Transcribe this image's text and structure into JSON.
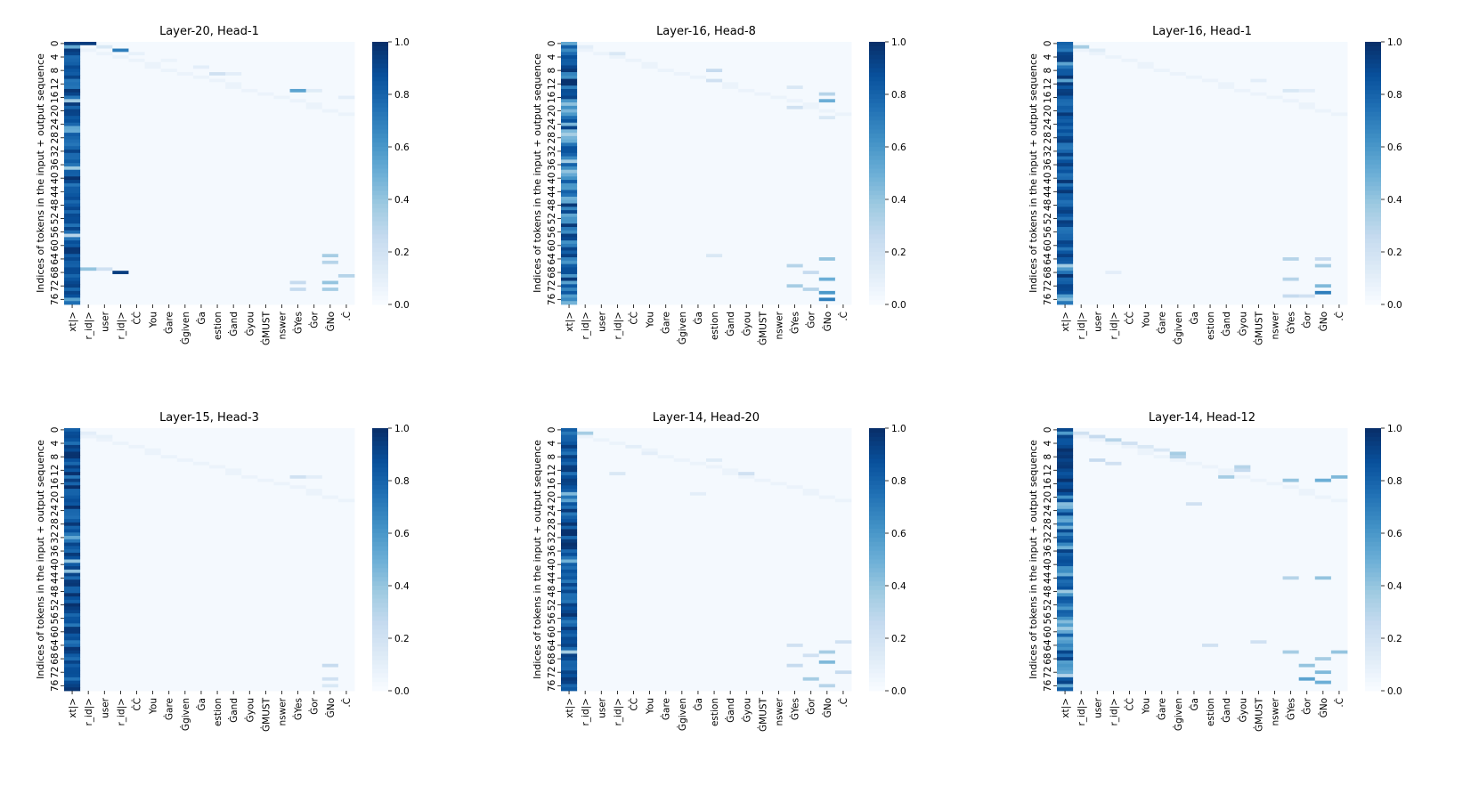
{
  "chart_data": [
    {
      "type": "heatmap",
      "title": "Layer-20, Head-1",
      "ylabel": "Indices of tokens in the input + output sequence",
      "x_tick_labels": [
        "xt|>",
        "r_id|>",
        "user",
        "r_id|>",
        "ĊĊ",
        "You",
        "Ġare",
        "Ġgiven",
        "Ġa",
        "estion",
        "Ġand",
        "Ġyou",
        "ĠMUST",
        "nswer",
        "ĠYes",
        "Ġor",
        "ĠNo",
        ".Ċ"
      ],
      "y_tick_labels": [
        "0",
        "4",
        "8",
        "12",
        "16",
        "20",
        "24",
        "28",
        "32",
        "36",
        "40",
        "44",
        "48",
        "52",
        "56",
        "60",
        "64",
        "68",
        "72",
        "76"
      ],
      "colorbar": {
        "ticks": [
          "0.0",
          "0.2",
          "0.4",
          "0.6",
          "0.8",
          "1.0"
        ],
        "range": [
          0,
          1
        ],
        "colormap": "Blues"
      },
      "column0_profile": "dark_uniform",
      "hotspots": [
        {
          "row": 0,
          "col": 0,
          "v": 0.95
        },
        {
          "row": 0,
          "col": 1,
          "v": 0.95
        },
        {
          "row": 1,
          "col": 2,
          "v": 0.15
        },
        {
          "row": 2,
          "col": 3,
          "v": 0.7
        },
        {
          "row": 3,
          "col": 4,
          "v": 0.08
        },
        {
          "row": 5,
          "col": 6,
          "v": 0.06
        },
        {
          "row": 7,
          "col": 8,
          "v": 0.1
        },
        {
          "row": 9,
          "col": 9,
          "v": 0.2
        },
        {
          "row": 9,
          "col": 10,
          "v": 0.1
        },
        {
          "row": 14,
          "col": 14,
          "v": 0.55
        },
        {
          "row": 14,
          "col": 15,
          "v": 0.12
        },
        {
          "row": 16,
          "col": 17,
          "v": 0.1
        },
        {
          "row": 67,
          "col": 0,
          "v": 0.9
        },
        {
          "row": 67,
          "col": 1,
          "v": 0.4
        },
        {
          "row": 67,
          "col": 2,
          "v": 0.2
        },
        {
          "row": 68,
          "col": 3,
          "v": 0.95
        },
        {
          "row": 63,
          "col": 16,
          "v": 0.35
        },
        {
          "row": 65,
          "col": 16,
          "v": 0.3
        },
        {
          "row": 71,
          "col": 16,
          "v": 0.4
        },
        {
          "row": 73,
          "col": 16,
          "v": 0.35
        },
        {
          "row": 71,
          "col": 14,
          "v": 0.25
        },
        {
          "row": 73,
          "col": 14,
          "v": 0.25
        },
        {
          "row": 69,
          "col": 17,
          "v": 0.3
        }
      ]
    },
    {
      "type": "heatmap",
      "title": "Layer-16, Head-8",
      "ylabel": "Indices of tokens in the input + output sequence",
      "x_tick_labels": [
        "xt|>",
        "r_id|>",
        "user",
        "r_id|>",
        "ĊĊ",
        "You",
        "Ġare",
        "Ġgiven",
        "Ġa",
        "estion",
        "Ġand",
        "Ġyou",
        "ĠMUST",
        "nswer",
        "ĠYes",
        "Ġor",
        "ĠNo",
        ".Ċ"
      ],
      "y_tick_labels": [
        "0",
        "4",
        "8",
        "12",
        "16",
        "20",
        "24",
        "28",
        "32",
        "36",
        "40",
        "44",
        "48",
        "52",
        "56",
        "60",
        "64",
        "68",
        "72",
        "76"
      ],
      "colorbar": {
        "ticks": [
          "0.0",
          "0.2",
          "0.4",
          "0.6",
          "0.8",
          "1.0"
        ],
        "range": [
          0,
          1
        ],
        "colormap": "Blues"
      },
      "column0_profile": "mixed_blue",
      "hotspots": [
        {
          "row": 1,
          "col": 1,
          "v": 0.1
        },
        {
          "row": 3,
          "col": 3,
          "v": 0.15
        },
        {
          "row": 8,
          "col": 9,
          "v": 0.25
        },
        {
          "row": 11,
          "col": 9,
          "v": 0.2
        },
        {
          "row": 13,
          "col": 14,
          "v": 0.15
        },
        {
          "row": 15,
          "col": 16,
          "v": 0.3
        },
        {
          "row": 17,
          "col": 16,
          "v": 0.5
        },
        {
          "row": 19,
          "col": 14,
          "v": 0.2
        },
        {
          "row": 22,
          "col": 16,
          "v": 0.15
        },
        {
          "row": 64,
          "col": 16,
          "v": 0.4
        },
        {
          "row": 66,
          "col": 14,
          "v": 0.3
        },
        {
          "row": 68,
          "col": 15,
          "v": 0.25
        },
        {
          "row": 70,
          "col": 16,
          "v": 0.5
        },
        {
          "row": 72,
          "col": 14,
          "v": 0.35
        },
        {
          "row": 73,
          "col": 15,
          "v": 0.3
        },
        {
          "row": 74,
          "col": 16,
          "v": 0.6
        },
        {
          "row": 76,
          "col": 16,
          "v": 0.7
        },
        {
          "row": 63,
          "col": 9,
          "v": 0.15
        }
      ]
    },
    {
      "type": "heatmap",
      "title": "Layer-16, Head-1",
      "ylabel": "Indices of tokens in the input + output sequence",
      "x_tick_labels": [
        "xt|>",
        "r_id|>",
        "user",
        "r_id|>",
        "ĊĊ",
        "You",
        "Ġare",
        "Ġgiven",
        "Ġa",
        "estion",
        "Ġand",
        "Ġyou",
        "ĠMUST",
        "nswer",
        "ĠYes",
        "Ġor",
        "ĠNo",
        ".Ċ"
      ],
      "y_tick_labels": [
        "0",
        "4",
        "8",
        "12",
        "16",
        "20",
        "24",
        "28",
        "32",
        "36",
        "40",
        "44",
        "48",
        "52",
        "56",
        "60",
        "64",
        "68",
        "72",
        "76"
      ],
      "colorbar": {
        "ticks": [
          "0.0",
          "0.2",
          "0.4",
          "0.6",
          "0.8",
          "1.0"
        ],
        "range": [
          0,
          1
        ],
        "colormap": "Blues"
      },
      "column0_profile": "dark_uniform",
      "hotspots": [
        {
          "row": 1,
          "col": 1,
          "v": 0.35
        },
        {
          "row": 2,
          "col": 2,
          "v": 0.12
        },
        {
          "row": 11,
          "col": 12,
          "v": 0.1
        },
        {
          "row": 14,
          "col": 14,
          "v": 0.15
        },
        {
          "row": 14,
          "col": 15,
          "v": 0.1
        },
        {
          "row": 64,
          "col": 14,
          "v": 0.3
        },
        {
          "row": 64,
          "col": 16,
          "v": 0.25
        },
        {
          "row": 66,
          "col": 16,
          "v": 0.35
        },
        {
          "row": 70,
          "col": 14,
          "v": 0.3
        },
        {
          "row": 72,
          "col": 16,
          "v": 0.45
        },
        {
          "row": 74,
          "col": 16,
          "v": 0.7
        },
        {
          "row": 75,
          "col": 14,
          "v": 0.25
        },
        {
          "row": 75,
          "col": 15,
          "v": 0.2
        },
        {
          "row": 68,
          "col": 3,
          "v": 0.1
        }
      ]
    },
    {
      "type": "heatmap",
      "title": "Layer-15, Head-3",
      "ylabel": "Indices of tokens in the input + output sequence",
      "x_tick_labels": [
        "xt|>",
        "r_id|>",
        "user",
        "r_id|>",
        "ĊĊ",
        "You",
        "Ġare",
        "Ġgiven",
        "Ġa",
        "estion",
        "Ġand",
        "Ġyou",
        "ĠMUST",
        "nswer",
        "ĠYes",
        "Ġor",
        "ĠNo",
        ".Ċ"
      ],
      "y_tick_labels": [
        "0",
        "4",
        "8",
        "12",
        "16",
        "20",
        "24",
        "28",
        "32",
        "36",
        "40",
        "44",
        "48",
        "52",
        "56",
        "60",
        "64",
        "68",
        "72",
        "76"
      ],
      "colorbar": {
        "ticks": [
          "0.0",
          "0.2",
          "0.4",
          "0.6",
          "0.8",
          "1.0"
        ],
        "range": [
          0,
          1
        ],
        "colormap": "Blues"
      },
      "column0_profile": "dark_uniform",
      "hotspots": [
        {
          "row": 1,
          "col": 1,
          "v": 0.1
        },
        {
          "row": 2,
          "col": 2,
          "v": 0.08
        },
        {
          "row": 14,
          "col": 14,
          "v": 0.2
        },
        {
          "row": 14,
          "col": 15,
          "v": 0.1
        },
        {
          "row": 70,
          "col": 16,
          "v": 0.25
        },
        {
          "row": 74,
          "col": 16,
          "v": 0.2
        },
        {
          "row": 76,
          "col": 16,
          "v": 0.15
        }
      ]
    },
    {
      "type": "heatmap",
      "title": "Layer-14, Head-20",
      "ylabel": "Indices of tokens in the input + output sequence",
      "x_tick_labels": [
        "xt|>",
        "r_id|>",
        "user",
        "r_id|>",
        "ĊĊ",
        "You",
        "Ġare",
        "Ġgiven",
        "Ġa",
        "estion",
        "Ġand",
        "Ġyou",
        "ĠMUST",
        "nswer",
        "ĠYes",
        "Ġor",
        "ĠNo",
        ".Ċ"
      ],
      "y_tick_labels": [
        "0",
        "4",
        "8",
        "12",
        "16",
        "20",
        "24",
        "28",
        "32",
        "36",
        "40",
        "44",
        "48",
        "52",
        "56",
        "60",
        "64",
        "68",
        "72",
        "76"
      ],
      "colorbar": {
        "ticks": [
          "0.0",
          "0.2",
          "0.4",
          "0.6",
          "0.8",
          "1.0"
        ],
        "range": [
          0,
          1
        ],
        "colormap": "Blues"
      },
      "column0_profile": "dark_uniform",
      "hotspots": [
        {
          "row": 1,
          "col": 1,
          "v": 0.35
        },
        {
          "row": 5,
          "col": 4,
          "v": 0.1
        },
        {
          "row": 7,
          "col": 5,
          "v": 0.1
        },
        {
          "row": 9,
          "col": 9,
          "v": 0.12
        },
        {
          "row": 13,
          "col": 3,
          "v": 0.15
        },
        {
          "row": 13,
          "col": 11,
          "v": 0.2
        },
        {
          "row": 19,
          "col": 8,
          "v": 0.1
        },
        {
          "row": 64,
          "col": 14,
          "v": 0.2
        },
        {
          "row": 66,
          "col": 16,
          "v": 0.35
        },
        {
          "row": 67,
          "col": 15,
          "v": 0.2
        },
        {
          "row": 69,
          "col": 16,
          "v": 0.45
        },
        {
          "row": 70,
          "col": 14,
          "v": 0.25
        },
        {
          "row": 72,
          "col": 17,
          "v": 0.25
        },
        {
          "row": 74,
          "col": 15,
          "v": 0.35
        },
        {
          "row": 76,
          "col": 16,
          "v": 0.3
        },
        {
          "row": 63,
          "col": 17,
          "v": 0.2
        }
      ]
    },
    {
      "type": "heatmap",
      "title": "Layer-14, Head-12",
      "ylabel": "Indices of tokens in the input + output sequence",
      "x_tick_labels": [
        "xt|>",
        "r_id|>",
        "user",
        "r_id|>",
        "ĊĊ",
        "You",
        "Ġare",
        "Ġgiven",
        "Ġa",
        "estion",
        "Ġand",
        "Ġyou",
        "ĠMUST",
        "nswer",
        "ĠYes",
        "Ġor",
        "ĠNo",
        ".Ċ"
      ],
      "y_tick_labels": [
        "0",
        "4",
        "8",
        "12",
        "16",
        "20",
        "24",
        "28",
        "32",
        "36",
        "40",
        "44",
        "48",
        "52",
        "56",
        "60",
        "64",
        "68",
        "72",
        "76"
      ],
      "colorbar": {
        "ticks": [
          "0.0",
          "0.2",
          "0.4",
          "0.6",
          "0.8",
          "1.0"
        ],
        "range": [
          0,
          1
        ],
        "colormap": "Blues"
      },
      "column0_profile": "dark_top_mixed_below",
      "hotspots": [
        {
          "row": 1,
          "col": 1,
          "v": 0.2
        },
        {
          "row": 2,
          "col": 2,
          "v": 0.25
        },
        {
          "row": 3,
          "col": 3,
          "v": 0.3
        },
        {
          "row": 4,
          "col": 4,
          "v": 0.2
        },
        {
          "row": 5,
          "col": 5,
          "v": 0.15
        },
        {
          "row": 6,
          "col": 6,
          "v": 0.15
        },
        {
          "row": 7,
          "col": 7,
          "v": 0.35
        },
        {
          "row": 8,
          "col": 7,
          "v": 0.3
        },
        {
          "row": 9,
          "col": 2,
          "v": 0.25
        },
        {
          "row": 10,
          "col": 3,
          "v": 0.2
        },
        {
          "row": 11,
          "col": 11,
          "v": 0.3
        },
        {
          "row": 12,
          "col": 11,
          "v": 0.25
        },
        {
          "row": 14,
          "col": 10,
          "v": 0.35
        },
        {
          "row": 15,
          "col": 14,
          "v": 0.4
        },
        {
          "row": 15,
          "col": 16,
          "v": 0.5
        },
        {
          "row": 14,
          "col": 17,
          "v": 0.45
        },
        {
          "row": 22,
          "col": 8,
          "v": 0.2
        },
        {
          "row": 44,
          "col": 14,
          "v": 0.3
        },
        {
          "row": 44,
          "col": 16,
          "v": 0.4
        },
        {
          "row": 64,
          "col": 9,
          "v": 0.2
        },
        {
          "row": 66,
          "col": 14,
          "v": 0.35
        },
        {
          "row": 68,
          "col": 16,
          "v": 0.35
        },
        {
          "row": 70,
          "col": 15,
          "v": 0.4
        },
        {
          "row": 72,
          "col": 16,
          "v": 0.45
        },
        {
          "row": 74,
          "col": 15,
          "v": 0.55
        },
        {
          "row": 75,
          "col": 16,
          "v": 0.5
        },
        {
          "row": 66,
          "col": 17,
          "v": 0.4
        },
        {
          "row": 63,
          "col": 12,
          "v": 0.2
        }
      ]
    }
  ]
}
